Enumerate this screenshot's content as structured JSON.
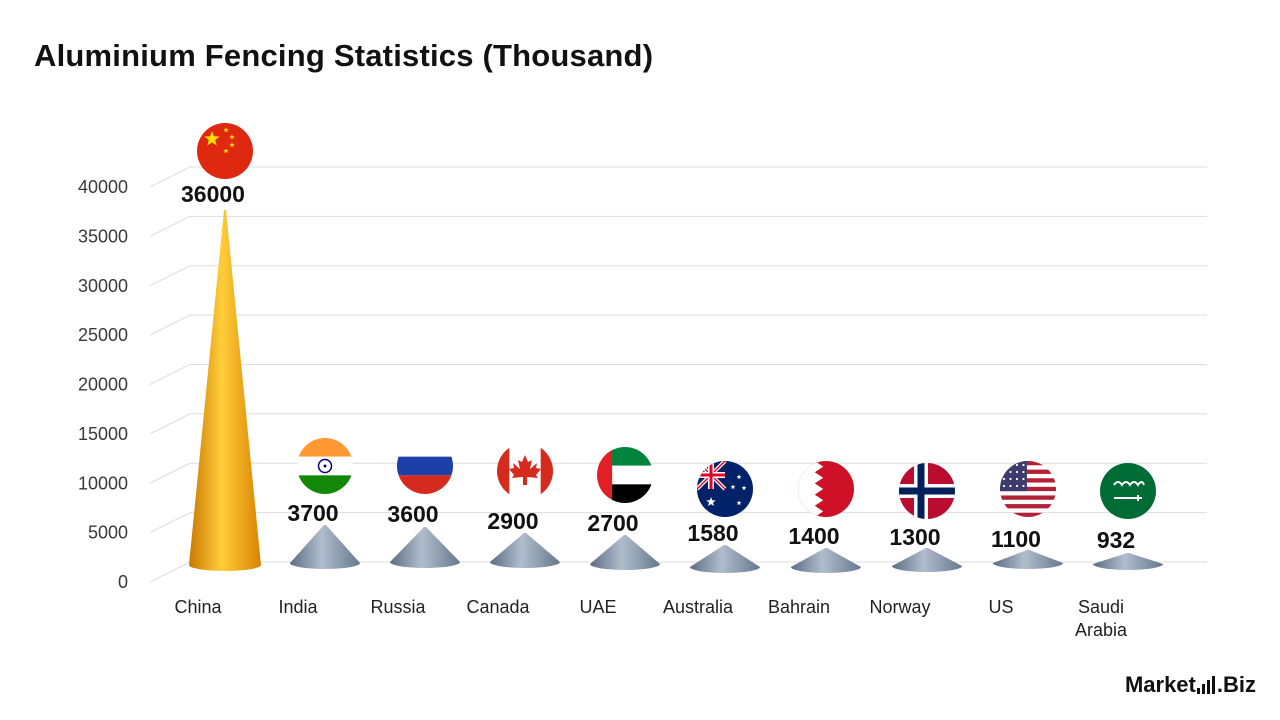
{
  "title": "Aluminium Fencing Statistics (Thousand)",
  "logo": {
    "brand_left": "Market",
    "brand_right": ".Biz"
  },
  "chart_data": {
    "type": "bar",
    "mark": "cone",
    "title": "Aluminium Fencing Statistics (Thousand)",
    "xlabel": "",
    "ylabel": "",
    "ylim": [
      0,
      40000
    ],
    "yticks": [
      0,
      5000,
      10000,
      15000,
      20000,
      25000,
      30000,
      35000,
      40000
    ],
    "grid": true,
    "categories": [
      "China",
      "India",
      "Russia",
      "Canada",
      "UAE",
      "Australia",
      "Bahrain",
      "Norway",
      "US",
      "Saudi Arabia"
    ],
    "category_lines": [
      [
        "China"
      ],
      [
        "India"
      ],
      [
        "Russia"
      ],
      [
        "Canada"
      ],
      [
        "UAE"
      ],
      [
        "Australia"
      ],
      [
        "Bahrain"
      ],
      [
        "Norway"
      ],
      [
        "US"
      ],
      [
        "Saudi",
        "Arabia"
      ]
    ],
    "values": [
      36000,
      3700,
      3600,
      2900,
      2700,
      1580,
      1400,
      1300,
      1100,
      932
    ],
    "value_labels": [
      "36000",
      "3700",
      "3600",
      "2900",
      "2700",
      "1580",
      "1400",
      "1300",
      "1100",
      "932"
    ],
    "flag_icons": [
      "china-flag-icon",
      "india-flag-icon",
      "russia-flag-icon",
      "canada-flag-icon",
      "uae-flag-icon",
      "australia-flag-icon",
      "bahrain-flag-icon",
      "norway-flag-icon",
      "us-flag-icon",
      "saudi-arabia-flag-icon"
    ],
    "colors": {
      "highlight": "#ffb000",
      "other": "#8fa0b4",
      "grid": "#dddddd"
    }
  }
}
